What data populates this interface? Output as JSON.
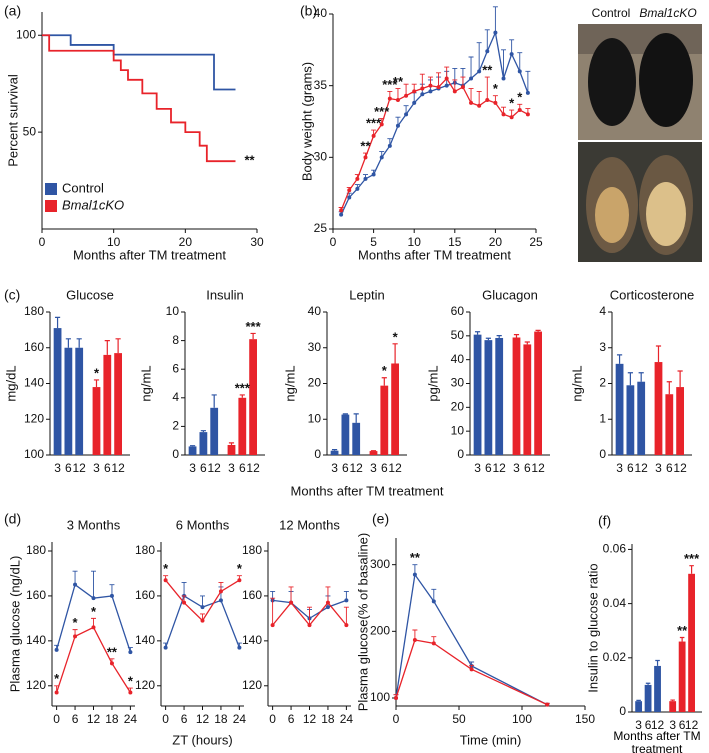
{
  "chart_data": [
    {
      "type": "step",
      "panel": "(a)",
      "ylabel": "Percent survival",
      "xlabel": "Months after TM treatment",
      "xlim": [
        0,
        30
      ],
      "xticks": [
        0,
        10,
        20,
        30
      ],
      "ylim": [
        0,
        112
      ],
      "yticks": [
        50,
        100
      ],
      "legend": "lower left",
      "series": [
        {
          "name": "Control",
          "color": "#2f55a4",
          "x": [
            0,
            4,
            10,
            24,
            27
          ],
          "values": [
            100,
            95,
            90,
            72,
            72
          ]
        },
        {
          "name": "Bmal1cKO",
          "color": "#e8232a",
          "x": [
            0,
            1,
            10,
            11,
            12,
            14,
            16,
            18,
            20,
            22,
            23,
            24,
            27
          ],
          "values": [
            100,
            92,
            87,
            82,
            77,
            70,
            62,
            55,
            50,
            43,
            35,
            35,
            35
          ]
        }
      ],
      "annotations": [
        {
          "text": "**",
          "series": 1,
          "index": 12
        }
      ]
    },
    {
      "type": "line",
      "panel": "(b)",
      "ylabel": "Body weight (grams)",
      "xlabel": "Months after TM treatment",
      "xlim": [
        0,
        25
      ],
      "xticks": [
        0,
        5,
        10,
        15,
        20,
        25
      ],
      "ylim": [
        25,
        40
      ],
      "yticks": [
        25,
        30,
        35,
        40
      ],
      "x": [
        1,
        2,
        3,
        4,
        5,
        6,
        7,
        8,
        9,
        10,
        11,
        12,
        13,
        14,
        15,
        16,
        17,
        18,
        19,
        20,
        21,
        22,
        23,
        24
      ],
      "series": [
        {
          "name": "Control",
          "color": "#2f55a4",
          "values": [
            26,
            27.2,
            27.8,
            28.5,
            28.8,
            30,
            30.8,
            32.2,
            33,
            33.8,
            34.4,
            34.6,
            34.8,
            35,
            35.2,
            35,
            35.5,
            36,
            37.4,
            38.7,
            35.5,
            37.2,
            36,
            34.5
          ],
          "errors": [
            0.2,
            0.3,
            0.3,
            0.3,
            0.3,
            0.4,
            0.5,
            0.6,
            0.6,
            0.7,
            0.7,
            0.8,
            0.8,
            1,
            1,
            1.2,
            1.5,
            2,
            1.5,
            1.8,
            2,
            1,
            1.3,
            1.5
          ]
        },
        {
          "name": "Bmal1cKO",
          "color": "#e8232a",
          "values": [
            26.3,
            27.7,
            28.5,
            30,
            31.5,
            32.3,
            34.1,
            34,
            34.3,
            34.6,
            34.8,
            35,
            34.9,
            35.5,
            34.6,
            34.9,
            33.8,
            33.6,
            34,
            33.8,
            33,
            32.8,
            33.3,
            33
          ],
          "errors": [
            0.2,
            0.2,
            0.3,
            0.3,
            0.4,
            0.4,
            0.5,
            0.8,
            0.8,
            0.5,
            1,
            0.6,
            1,
            0.8,
            0.8,
            0.7,
            1,
            1,
            1.6,
            0.5,
            0.5,
            0.5,
            0.4,
            0.4
          ]
        }
      ],
      "annotations": [
        {
          "text": "**",
          "series": 1,
          "index": 3
        },
        {
          "text": "***",
          "series": 1,
          "index": 4
        },
        {
          "text": "***",
          "series": 1,
          "index": 5
        },
        {
          "text": "***",
          "series": 1,
          "index": 6
        },
        {
          "text": "**",
          "series": 1,
          "index": 7
        },
        {
          "text": "**",
          "series": 1,
          "index": 18
        },
        {
          "text": "*",
          "series": 1,
          "index": 19
        },
        {
          "text": "*",
          "series": 1,
          "index": 21
        },
        {
          "text": "*",
          "series": 1,
          "index": 22
        }
      ]
    },
    {
      "type": "bar",
      "panel": "(c)",
      "title": "Glucose",
      "ylabel": "mg/dL",
      "categories": [
        "3",
        "6",
        "12"
      ],
      "ylim": [
        100,
        180
      ],
      "yticks": [
        100,
        120,
        140,
        160,
        180
      ],
      "series": [
        {
          "name": "Control",
          "color": "#2f55a4",
          "values": [
            171,
            160,
            160
          ],
          "errors": [
            6,
            5,
            5
          ]
        },
        {
          "name": "Bmal1cKO",
          "color": "#e8232a",
          "values": [
            138,
            156,
            157
          ],
          "errors": [
            4,
            8,
            8
          ]
        }
      ],
      "annotations": [
        {
          "text": "*",
          "series": 1,
          "index": 0
        }
      ]
    },
    {
      "type": "bar",
      "title": "Insulin",
      "ylabel": "ng/mL",
      "categories": [
        "3",
        "6",
        "12"
      ],
      "ylim": [
        0,
        10
      ],
      "yticks": [
        0,
        2,
        4,
        6,
        8,
        10
      ],
      "series": [
        {
          "name": "Control",
          "color": "#2f55a4",
          "values": [
            0.6,
            1.6,
            3.3
          ],
          "errors": [
            0.05,
            0.1,
            0.9
          ]
        },
        {
          "name": "Bmal1cKO",
          "color": "#e8232a",
          "values": [
            0.7,
            4.0,
            8.1
          ],
          "errors": [
            0.15,
            0.2,
            0.4
          ]
        }
      ],
      "annotations": [
        {
          "text": "***",
          "series": 1,
          "index": 1
        },
        {
          "text": "***",
          "series": 1,
          "index": 2
        }
      ]
    },
    {
      "type": "bar",
      "title": "Leptin",
      "ylabel": "ng/mL",
      "xlabel": "Months after TM treatment",
      "categories": [
        "3",
        "6",
        "12"
      ],
      "ylim": [
        0,
        40
      ],
      "yticks": [
        0,
        10,
        20,
        30,
        40
      ],
      "series": [
        {
          "name": "Control",
          "color": "#2f55a4",
          "values": [
            1.2,
            11.3,
            9
          ],
          "errors": [
            0.3,
            0.2,
            2.5
          ]
        },
        {
          "name": "Bmal1cKO",
          "color": "#e8232a",
          "values": [
            1.1,
            19.4,
            25.6
          ],
          "errors": [
            0.1,
            2.2,
            5.5
          ]
        }
      ],
      "annotations": [
        {
          "text": "*",
          "series": 1,
          "index": 1
        },
        {
          "text": "*",
          "series": 1,
          "index": 2
        }
      ]
    },
    {
      "type": "bar",
      "title": "Glucagon",
      "ylabel": "pg/mL",
      "categories": [
        "3",
        "6",
        "12"
      ],
      "ylim": [
        0,
        60
      ],
      "yticks": [
        0,
        10,
        20,
        30,
        40,
        50,
        60
      ],
      "series": [
        {
          "name": "Control",
          "color": "#2f55a4",
          "values": [
            50.5,
            48.2,
            49.1
          ],
          "errors": [
            1.2,
            0.8,
            1
          ]
        },
        {
          "name": "Bmal1cKO",
          "color": "#e8232a",
          "values": [
            49.3,
            46.4,
            51.8
          ],
          "errors": [
            1.2,
            1,
            0.5
          ]
        }
      ]
    },
    {
      "type": "bar",
      "title": "Corticosterone",
      "ylabel": "ng/mL",
      "categories": [
        "3",
        "6",
        "12"
      ],
      "ylim": [
        0,
        4
      ],
      "yticks": [
        0,
        1,
        2,
        3,
        4
      ],
      "series": [
        {
          "name": "Control",
          "color": "#2f55a4",
          "values": [
            2.55,
            1.95,
            2.05
          ],
          "errors": [
            0.25,
            0.35,
            0.25
          ]
        },
        {
          "name": "Bmal1cKO",
          "color": "#e8232a",
          "values": [
            2.6,
            1.7,
            1.9
          ],
          "errors": [
            0.45,
            0.35,
            0.45
          ]
        }
      ]
    },
    {
      "type": "line",
      "panel": "(d)",
      "title": "3 Months",
      "ylabel": "Plasma glucose (ng/dL)",
      "x": [
        0,
        6,
        12,
        18,
        24
      ],
      "xlim": [
        -1.5,
        25.5
      ],
      "xticks": [
        0,
        6,
        12,
        18,
        24
      ],
      "ylim": [
        111,
        184
      ],
      "yticks": [
        120,
        140,
        160,
        180
      ],
      "series": [
        {
          "name": "Control",
          "color": "#2f55a4",
          "values": [
            136,
            165,
            159,
            160,
            135
          ],
          "errors": [
            2,
            6,
            12,
            5,
            2
          ]
        },
        {
          "name": "Bmal1cKO",
          "color": "#e8232a",
          "values": [
            117,
            142,
            146,
            130,
            117
          ],
          "errors": [
            3,
            3,
            4,
            2,
            2
          ]
        }
      ],
      "annotations": [
        {
          "text": "*",
          "series": 1,
          "index": 0
        },
        {
          "text": "*",
          "series": 1,
          "index": 1
        },
        {
          "text": "*",
          "series": 1,
          "index": 2
        },
        {
          "text": "**",
          "series": 1,
          "index": 3
        },
        {
          "text": "*",
          "series": 1,
          "index": 4
        }
      ]
    },
    {
      "type": "line",
      "title": "6 Months",
      "xlabel": "ZT (hours)",
      "x": [
        0,
        6,
        12,
        18,
        24
      ],
      "xlim": [
        -1.5,
        25.5
      ],
      "xticks": [
        0,
        6,
        12,
        18,
        24
      ],
      "ylim": [
        111,
        184
      ],
      "yticks": [
        120,
        140,
        160,
        180
      ],
      "series": [
        {
          "name": "Control",
          "color": "#2f55a4",
          "values": [
            137,
            160,
            155,
            158,
            137
          ],
          "errors": [
            2,
            6,
            5,
            6,
            2
          ]
        },
        {
          "name": "Bmal1cKO",
          "color": "#e8232a",
          "values": [
            167,
            157,
            149,
            162,
            167
          ],
          "errors": [
            2,
            3,
            3,
            4,
            2
          ]
        }
      ],
      "annotations": [
        {
          "text": "*",
          "series": 1,
          "index": 0
        },
        {
          "text": "*",
          "series": 1,
          "index": 4
        }
      ]
    },
    {
      "type": "line",
      "title": "12 Months",
      "x": [
        0,
        6,
        12,
        18,
        24
      ],
      "xlim": [
        -1.5,
        25.5
      ],
      "xticks": [
        0,
        6,
        12,
        18,
        24
      ],
      "ylim": [
        111,
        184
      ],
      "yticks": [
        120,
        140,
        160,
        180
      ],
      "series": [
        {
          "name": "Control",
          "color": "#2f55a4",
          "values": [
            158,
            157,
            150,
            155,
            158
          ],
          "errors": [
            4,
            5,
            4,
            5,
            4
          ]
        },
        {
          "name": "Bmal1cKO",
          "color": "#e8232a",
          "values": [
            147,
            157,
            147,
            157,
            147
          ],
          "errors": [
            12,
            7,
            8,
            7,
            8
          ]
        }
      ]
    },
    {
      "type": "line",
      "panel": "(e)",
      "ylabel": "Plasma glucose(% of basaline)",
      "xlabel": "Time (min)",
      "x": [
        0,
        15,
        30,
        60,
        120
      ],
      "xlim": [
        0,
        150
      ],
      "xticks": [
        0,
        50,
        100,
        150
      ],
      "ylim": [
        88,
        340
      ],
      "yticks": [
        100,
        200,
        300
      ],
      "series": [
        {
          "name": "Control",
          "color": "#2f55a4",
          "values": [
            100,
            285,
            245,
            148,
            90
          ],
          "errors": [
            5,
            15,
            18,
            6,
            2
          ]
        },
        {
          "name": "Bmal1cKO",
          "color": "#e8232a",
          "values": [
            100,
            187,
            182,
            143,
            90
          ],
          "errors": [
            5,
            15,
            10,
            6,
            2
          ]
        }
      ],
      "annotations": [
        {
          "text": "**",
          "series": 0,
          "index": 1
        }
      ]
    },
    {
      "type": "bar",
      "panel": "(f)",
      "ylabel": "Insulin to glucose ratio",
      "xlabel": "Months after TM treatment",
      "categories": [
        "3",
        "6",
        "12"
      ],
      "ylim": [
        0,
        0.062
      ],
      "yticks": [
        0,
        0.02,
        0.04,
        0.06
      ],
      "series": [
        {
          "name": "Control",
          "color": "#2f55a4",
          "values": [
            0.004,
            0.01,
            0.017
          ],
          "errors": [
            0.0003,
            0.0006,
            0.002
          ]
        },
        {
          "name": "Bmal1cKO",
          "color": "#e8232a",
          "values": [
            0.004,
            0.026,
            0.051
          ],
          "errors": [
            0.0004,
            0.0015,
            0.003
          ]
        }
      ],
      "annotations": [
        {
          "text": "**",
          "series": 1,
          "index": 1
        },
        {
          "text": "***",
          "series": 1,
          "index": 2
        }
      ]
    }
  ],
  "photo": {
    "labels": [
      "Control",
      "Bmal1cKO"
    ]
  }
}
